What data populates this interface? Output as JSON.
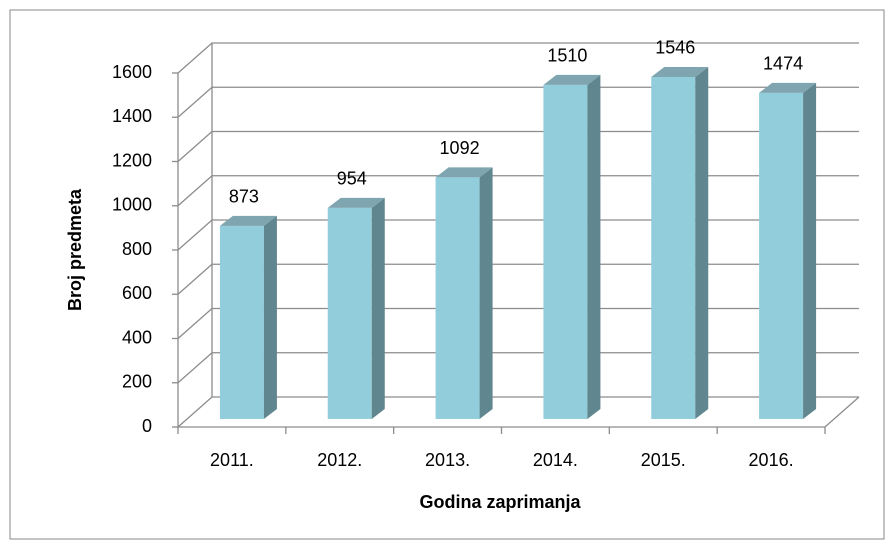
{
  "chart_data": {
    "type": "bar3d",
    "x_label": "Godina zaprimanja",
    "y_label": "Broj predmeta",
    "categories": [
      "2011.",
      "2012.",
      "2013.",
      "2014.",
      "2015.",
      "2016."
    ],
    "values": [
      873,
      954,
      1092,
      1510,
      1546,
      1474
    ],
    "color": "#92cddc",
    "ylim": [
      0,
      1600
    ],
    "yticks": [
      0,
      200,
      400,
      600,
      800,
      1000,
      1200,
      1400,
      1600
    ],
    "grid": true
  }
}
